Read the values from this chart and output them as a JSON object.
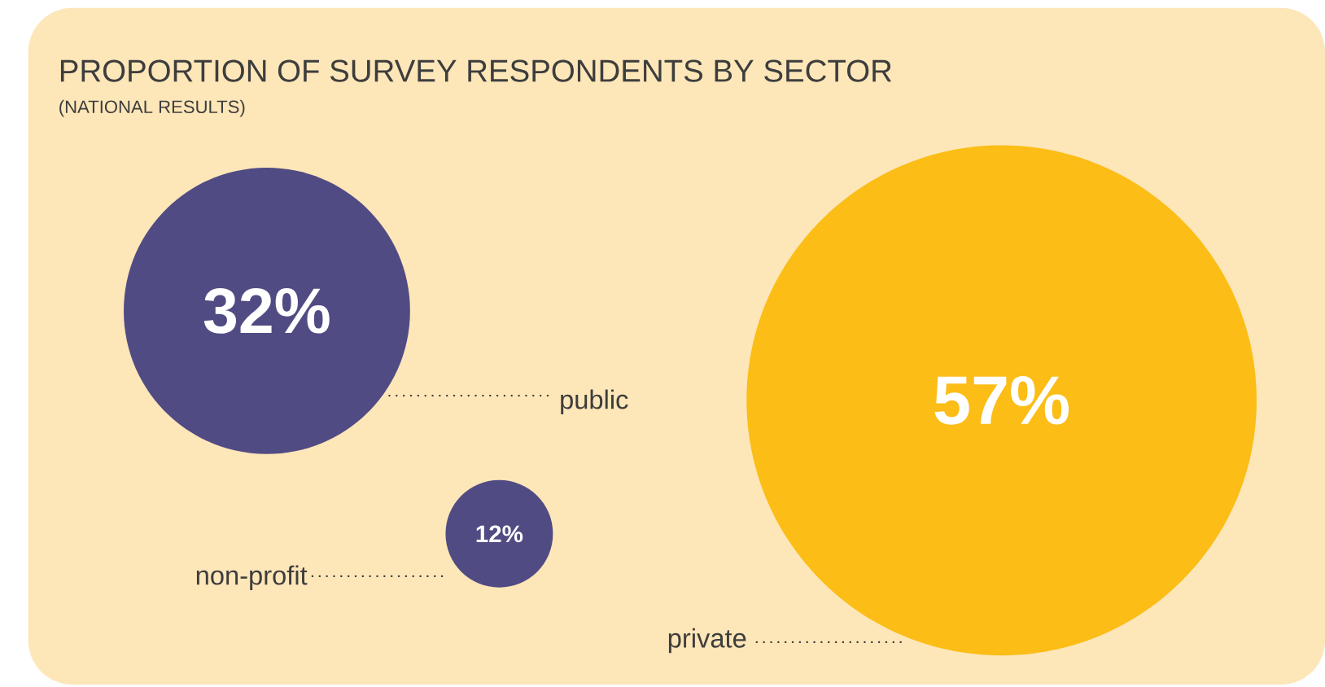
{
  "chart_data": {
    "type": "other",
    "title": "PROPORTION OF SURVEY RESPONDENTS BY SECTOR",
    "subtitle": "(NATIONAL RESULTS)",
    "categories": [
      "public",
      "non-profit",
      "private"
    ],
    "values": [
      32,
      12,
      57
    ],
    "value_labels": [
      "32%",
      "12%",
      "57%"
    ],
    "colors": [
      "#514b84",
      "#514b84",
      "#fbbd16"
    ]
  }
}
